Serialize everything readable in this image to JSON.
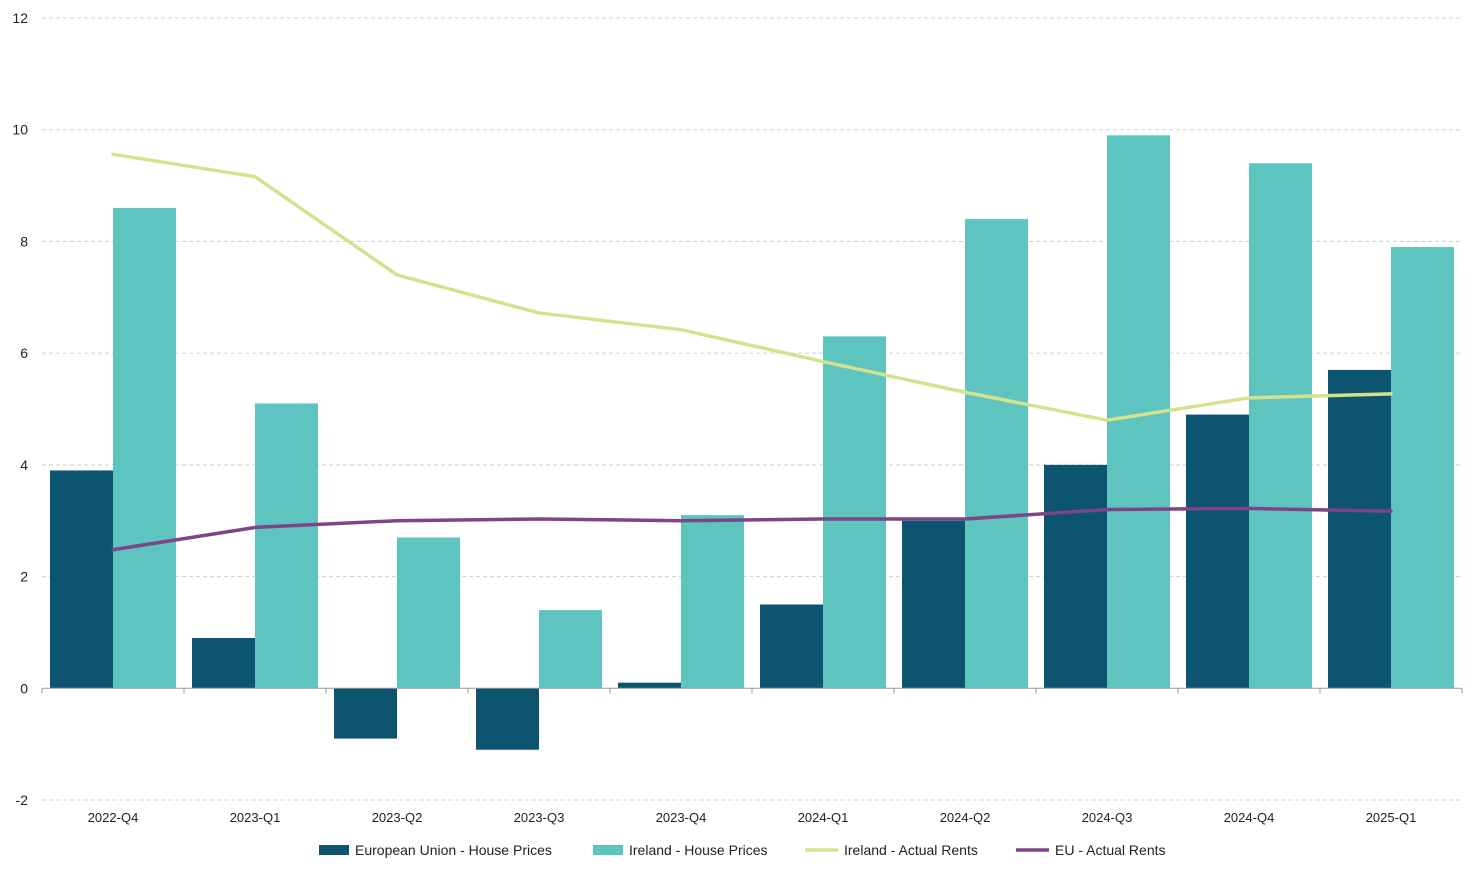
{
  "chart_data": {
    "type": "bar",
    "categories": [
      "2022-Q4",
      "2023-Q1",
      "2023-Q2",
      "2023-Q3",
      "2023-Q4",
      "2024-Q1",
      "2024-Q2",
      "2024-Q3",
      "2024-Q4",
      "2025-Q1"
    ],
    "series": [
      {
        "name": "European Union - House Prices",
        "kind": "bar",
        "color": "#0d5470",
        "values": [
          3.9,
          0.9,
          -0.9,
          -1.1,
          0.1,
          1.5,
          3.0,
          4.0,
          4.9,
          5.7
        ]
      },
      {
        "name": "Ireland - House Prices",
        "kind": "bar",
        "color": "#5ec4c0",
        "values": [
          8.6,
          5.1,
          2.7,
          1.4,
          3.1,
          6.3,
          8.4,
          9.9,
          9.4,
          7.9
        ]
      },
      {
        "name": "Ireland - Actual Rents",
        "kind": "line",
        "color": "#d4e28e",
        "values": [
          9.56,
          9.16,
          7.4,
          6.72,
          6.42,
          5.85,
          5.3,
          4.8,
          5.2,
          5.27
        ]
      },
      {
        "name": "EU - Actual Rents",
        "kind": "line",
        "color": "#7b4586",
        "values": [
          2.48,
          2.88,
          3.0,
          3.03,
          3.0,
          3.03,
          3.03,
          3.2,
          3.22,
          3.17
        ]
      }
    ],
    "yticks": [
      "-2",
      "0",
      "2",
      "4",
      "6",
      "8",
      "10",
      "12"
    ],
    "ylim": [
      -2,
      12
    ],
    "grid": true,
    "legend_position": "bottom",
    "title": "",
    "xlabel": "",
    "ylabel": ""
  }
}
